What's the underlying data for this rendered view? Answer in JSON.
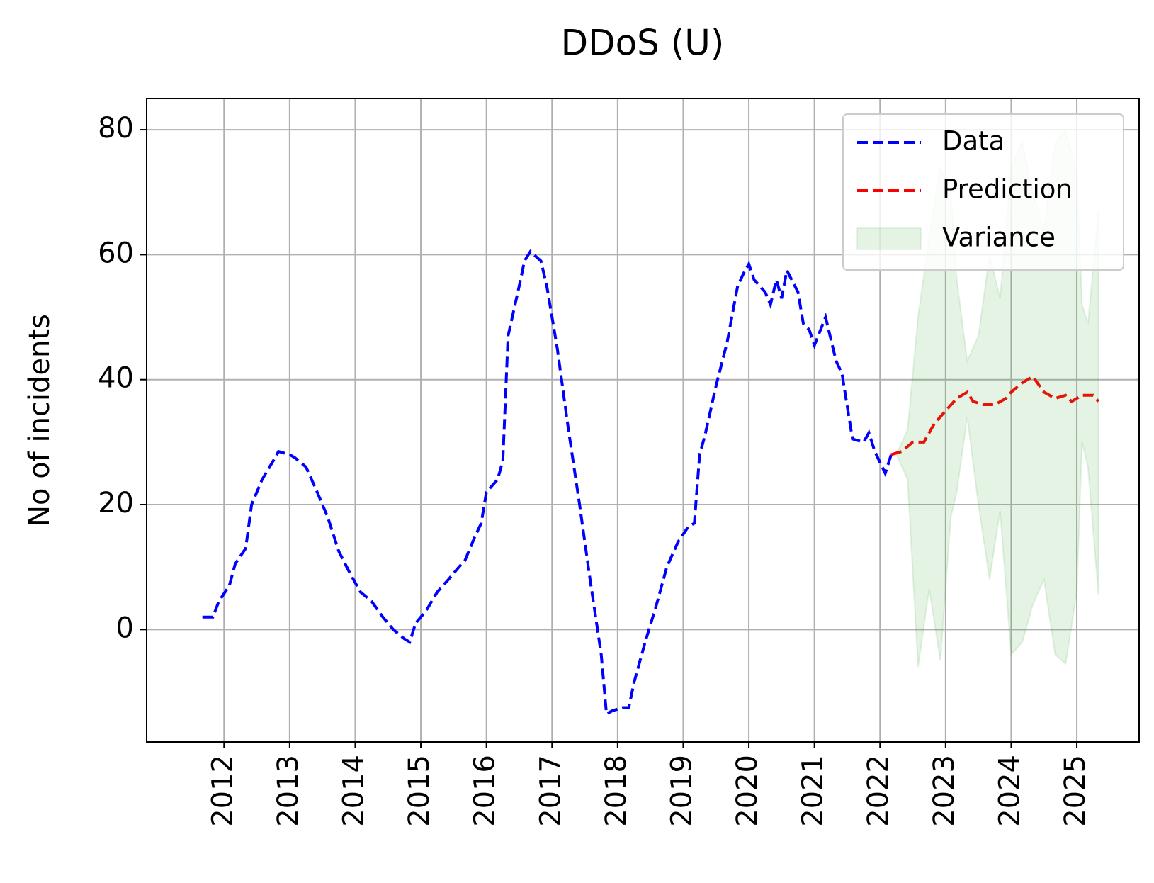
{
  "chart_data": {
    "type": "line",
    "title": "DDoS (U)",
    "y_label": "No of incidents",
    "xlim": [
      2010.82,
      2025.95
    ],
    "ylim": [
      -18,
      85
    ],
    "xticks": [
      2012,
      2013,
      2014,
      2015,
      2016,
      2017,
      2018,
      2019,
      2020,
      2021,
      2022,
      2023,
      2024,
      2025
    ],
    "yticks": [
      0,
      20,
      40,
      60,
      80
    ],
    "grid": true,
    "legend": "upper right",
    "series": [
      {
        "name": "Data",
        "color": "#0000ff",
        "style": "dashed",
        "x": [
          2011.67,
          2011.83,
          2011.92,
          2012.08,
          2012.17,
          2012.33,
          2012.42,
          2012.58,
          2012.75,
          2012.83,
          2013.0,
          2013.08,
          2013.25,
          2013.42,
          2013.58,
          2013.75,
          2013.92,
          2014.08,
          2014.25,
          2014.42,
          2014.58,
          2014.75,
          2014.83,
          2014.92,
          2015.08,
          2015.25,
          2015.42,
          2015.58,
          2015.67,
          2015.83,
          2015.92,
          2016.0,
          2016.17,
          2016.25,
          2016.33,
          2016.5,
          2016.58,
          2016.67,
          2016.83,
          2016.92,
          2017.08,
          2017.25,
          2017.42,
          2017.58,
          2017.75,
          2017.83,
          2017.92,
          2018.08,
          2018.17,
          2018.25,
          2018.42,
          2018.58,
          2018.75,
          2018.92,
          2019.08,
          2019.17,
          2019.25,
          2019.33,
          2019.5,
          2019.67,
          2019.83,
          2019.92,
          2020.0,
          2020.08,
          2020.25,
          2020.33,
          2020.42,
          2020.5,
          2020.58,
          2020.75,
          2020.83,
          2020.92,
          2021.0,
          2021.17,
          2021.33,
          2021.42,
          2021.58,
          2021.75,
          2021.83,
          2021.92,
          2022.08,
          2022.17
        ],
        "values": [
          2,
          2,
          4.5,
          7,
          10.5,
          13,
          20,
          24,
          27,
          28.5,
          28,
          27.5,
          26,
          22,
          18,
          12.5,
          9,
          6,
          4.5,
          2,
          0,
          -1.5,
          -2,
          1,
          3,
          6,
          8,
          10,
          11,
          15,
          17,
          22,
          24,
          27,
          47,
          55,
          59,
          60.5,
          59,
          55,
          45,
          32,
          20,
          8,
          -4,
          -13.5,
          -13,
          -12.5,
          -12.5,
          -8.5,
          -2,
          3.5,
          10,
          14,
          16.5,
          17,
          28,
          31,
          39,
          46,
          55,
          57,
          58.5,
          56,
          54,
          52,
          56,
          53,
          57.5,
          54,
          49,
          48,
          45.5,
          50,
          43,
          41,
          30.5,
          30,
          31.5,
          28.5,
          25,
          28
        ]
      },
      {
        "name": "Prediction",
        "color": "#ff0000",
        "style": "dashed",
        "x": [
          2022.17,
          2022.33,
          2022.5,
          2022.67,
          2022.83,
          2023.0,
          2023.17,
          2023.33,
          2023.42,
          2023.58,
          2023.75,
          2023.92,
          2024.0,
          2024.17,
          2024.33,
          2024.5,
          2024.67,
          2024.83,
          2024.92,
          2025.08,
          2025.25,
          2025.33
        ],
        "values": [
          28,
          28.5,
          30,
          30,
          33,
          35,
          37,
          38,
          36.5,
          36,
          36,
          37,
          38,
          39.5,
          40.5,
          38,
          37,
          37.5,
          36.5,
          37.5,
          37.5,
          36.5
        ]
      },
      {
        "name": "Variance",
        "color": "#2ca02c",
        "style": "band",
        "x": [
          2022.25,
          2022.42,
          2022.58,
          2022.75,
          2022.92,
          2023.08,
          2023.17,
          2023.33,
          2023.5,
          2023.67,
          2023.83,
          2024.0,
          2024.17,
          2024.33,
          2024.5,
          2024.67,
          2024.83,
          2025.0,
          2025.08,
          2025.17,
          2025.33
        ],
        "lower": [
          28,
          24,
          -6,
          6.5,
          -5,
          18,
          22,
          34,
          20,
          8,
          19,
          -4,
          -2,
          4,
          8,
          -4,
          -5.5,
          6,
          30,
          26,
          5.5
        ],
        "upper": [
          28,
          32,
          50,
          63,
          74,
          70,
          56,
          43,
          47,
          60,
          53,
          74,
          78,
          70,
          64,
          78,
          80,
          73,
          52,
          49,
          67
        ]
      }
    ]
  }
}
